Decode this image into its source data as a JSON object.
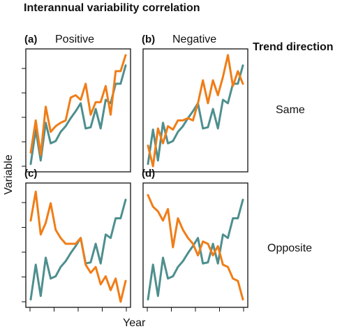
{
  "figure": {
    "title": "Interannual variability correlation",
    "row_header": "Trend direction",
    "row_labels": [
      "Same",
      "Opposite"
    ],
    "xlabel": "Year",
    "ylabel": "Variable"
  },
  "colors": {
    "teal": "#4e8f8e",
    "orange": "#f07d17"
  },
  "chart_data": [
    {
      "type": "line",
      "panel": "(a)",
      "title": "Positive",
      "x": [
        1,
        2,
        3,
        4,
        5,
        6,
        7,
        8,
        9,
        10,
        11,
        12,
        13,
        14,
        15,
        16,
        17,
        18,
        19,
        20
      ],
      "ylim": [
        0,
        1
      ],
      "series": [
        {
          "color": "#4e8f8e",
          "values": [
            0.02,
            0.32,
            0.05,
            0.38,
            0.2,
            0.22,
            0.3,
            0.35,
            0.42,
            0.48,
            0.55,
            0.33,
            0.34,
            0.5,
            0.33,
            0.58,
            0.55,
            0.72,
            0.72,
            0.88
          ]
        },
        {
          "color": "#f07d17",
          "values": [
            0.12,
            0.4,
            0.1,
            0.52,
            0.3,
            0.35,
            0.38,
            0.4,
            0.6,
            0.62,
            0.58,
            0.72,
            0.45,
            0.56,
            0.56,
            0.7,
            0.45,
            0.83,
            0.83,
            0.97
          ]
        }
      ]
    },
    {
      "type": "line",
      "panel": "(b)",
      "title": "Negative",
      "x": [
        1,
        2,
        3,
        4,
        5,
        6,
        7,
        8,
        9,
        10,
        11,
        12,
        13,
        14,
        15,
        16,
        17,
        18,
        19,
        20
      ],
      "ylim": [
        0,
        1
      ],
      "series": [
        {
          "color": "#4e8f8e",
          "values": [
            0.02,
            0.32,
            0.05,
            0.38,
            0.2,
            0.22,
            0.3,
            0.35,
            0.42,
            0.48,
            0.55,
            0.33,
            0.34,
            0.5,
            0.33,
            0.58,
            0.55,
            0.72,
            0.72,
            0.88
          ]
        },
        {
          "color": "#f07d17",
          "values": [
            0.18,
            0.0,
            0.33,
            0.2,
            0.35,
            0.32,
            0.4,
            0.4,
            0.42,
            0.4,
            0.55,
            0.75,
            0.55,
            0.75,
            0.62,
            0.78,
            0.97,
            0.7,
            0.83,
            0.72
          ]
        }
      ]
    },
    {
      "type": "line",
      "panel": "(c)",
      "title": "",
      "x": [
        1,
        2,
        3,
        4,
        5,
        6,
        7,
        8,
        9,
        10,
        11,
        12,
        13,
        14,
        15,
        16,
        17,
        18,
        19,
        20
      ],
      "ylim": [
        0,
        1
      ],
      "series": [
        {
          "color": "#4e8f8e",
          "values": [
            0.02,
            0.32,
            0.05,
            0.38,
            0.2,
            0.22,
            0.3,
            0.35,
            0.42,
            0.48,
            0.55,
            0.33,
            0.34,
            0.5,
            0.33,
            0.58,
            0.55,
            0.72,
            0.72,
            0.88
          ]
        },
        {
          "color": "#f07d17",
          "values": [
            0.7,
            0.95,
            0.58,
            0.68,
            0.85,
            0.62,
            0.55,
            0.5,
            0.5,
            0.5,
            0.55,
            0.32,
            0.25,
            0.3,
            0.15,
            0.22,
            0.1,
            0.2,
            0.0,
            0.18
          ]
        }
      ]
    },
    {
      "type": "line",
      "panel": "(d)",
      "title": "",
      "x": [
        1,
        2,
        3,
        4,
        5,
        6,
        7,
        8,
        9,
        10,
        11,
        12,
        13,
        14,
        15,
        16,
        17,
        18,
        19,
        20
      ],
      "ylim": [
        0,
        1
      ],
      "series": [
        {
          "color": "#4e8f8e",
          "values": [
            0.02,
            0.32,
            0.05,
            0.38,
            0.2,
            0.22,
            0.3,
            0.35,
            0.42,
            0.48,
            0.55,
            0.33,
            0.34,
            0.5,
            0.33,
            0.58,
            0.55,
            0.72,
            0.72,
            0.88
          ]
        },
        {
          "color": "#f07d17",
          "values": [
            0.92,
            0.82,
            0.78,
            0.7,
            0.8,
            0.47,
            0.72,
            0.62,
            0.55,
            0.5,
            0.4,
            0.52,
            0.5,
            0.4,
            0.48,
            0.32,
            0.3,
            0.2,
            0.18,
            0.02
          ]
        }
      ]
    }
  ]
}
